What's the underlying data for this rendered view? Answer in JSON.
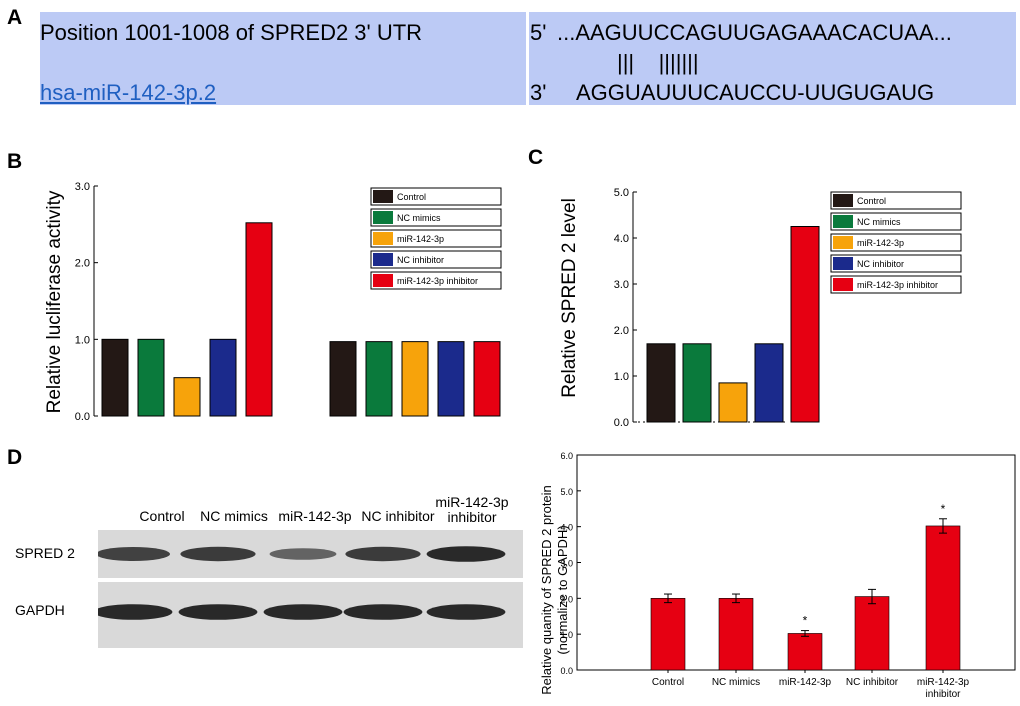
{
  "panel_labels": {
    "a": "A",
    "b": "B",
    "c": "C",
    "d": "D"
  },
  "panel_a": {
    "left_title": "Position 1001-1008 of SPRED2 3' UTR",
    "left_link": "hsa-miR-142-3p.2",
    "utr_prefix": "5'",
    "utr_seq": "...AAGUUCCAGUUGAGAAACACUAA...",
    "pairing": "|||    |||||||",
    "mir_prefix": "3'",
    "mir_seq": "AGGUAUUUCAUCCU-UUGUGAUG"
  },
  "colors": {
    "Control": "#231815",
    "NC mimics": "#0a7a3c",
    "miR-142-3p": "#f7a30b",
    "NC inhibitor": "#1b2a8c",
    "miR-142-3p inhibitor": "#e60012",
    "blot_bg": "#d9d9d9"
  },
  "chart_data": [
    {
      "id": "B",
      "type": "bar",
      "ylabel": "Relative lucliferase activity",
      "ylim": [
        0,
        3.0
      ],
      "yticks": [
        "0.0",
        "1.0",
        "2.0",
        "3.0"
      ],
      "legend": [
        "Control",
        "NC mimics",
        "miR-142-3p",
        "NC inhibitor",
        "miR-142-3p inhibitor"
      ],
      "legend_position": "top-right",
      "groups": [
        {
          "values": [
            1.0,
            1.0,
            0.5,
            1.0,
            2.52
          ]
        },
        {
          "values": [
            0.97,
            0.97,
            0.97,
            0.97,
            0.97
          ]
        }
      ]
    },
    {
      "id": "C",
      "type": "bar",
      "ylabel": "Relative SPRED 2 level",
      "ylim": [
        0,
        5.0
      ],
      "yticks": [
        "0.0",
        "1.0",
        "2.0",
        "3.0",
        "4.0",
        "5.0"
      ],
      "legend": [
        "Control",
        "NC mimics",
        "miR-142-3p",
        "NC inhibitor",
        "miR-142-3p inhibitor"
      ],
      "legend_position": "top-right",
      "values": [
        1.7,
        1.7,
        0.85,
        1.7,
        4.25
      ]
    },
    {
      "id": "D",
      "type": "bar",
      "ylabel_line1": "Relative quanity of SPRED 2 protein",
      "ylabel_line2": "(normalize to GAPDH)",
      "ylim": [
        0,
        6.0
      ],
      "yticks": [
        "0.0",
        "1.0",
        "2.0",
        "3.0",
        "4.0",
        "5.0",
        "6.0"
      ],
      "categories": [
        "Control",
        "NC mimics",
        "miR-142-3p",
        "NC inhibitor",
        "miR-142-3p|inhibitor"
      ],
      "values": [
        2.0,
        2.0,
        1.02,
        2.05,
        4.02
      ],
      "errors": [
        0.12,
        0.12,
        0.08,
        0.2,
        0.2
      ],
      "significance": [
        "",
        "",
        "*",
        "",
        "*"
      ],
      "color": "#e60012"
    }
  ],
  "western_blot": {
    "lanes": [
      "Control",
      "NC mimics",
      "miR-142-3p",
      "NC inhibitor",
      "miR-142-3p inhibitor"
    ],
    "rows": [
      {
        "label": "SPRED 2",
        "intensity": [
          0.75,
          0.8,
          0.45,
          0.8,
          0.95
        ]
      },
      {
        "label": "GAPDH",
        "intensity": [
          0.95,
          0.95,
          0.95,
          0.95,
          0.95
        ]
      }
    ]
  }
}
